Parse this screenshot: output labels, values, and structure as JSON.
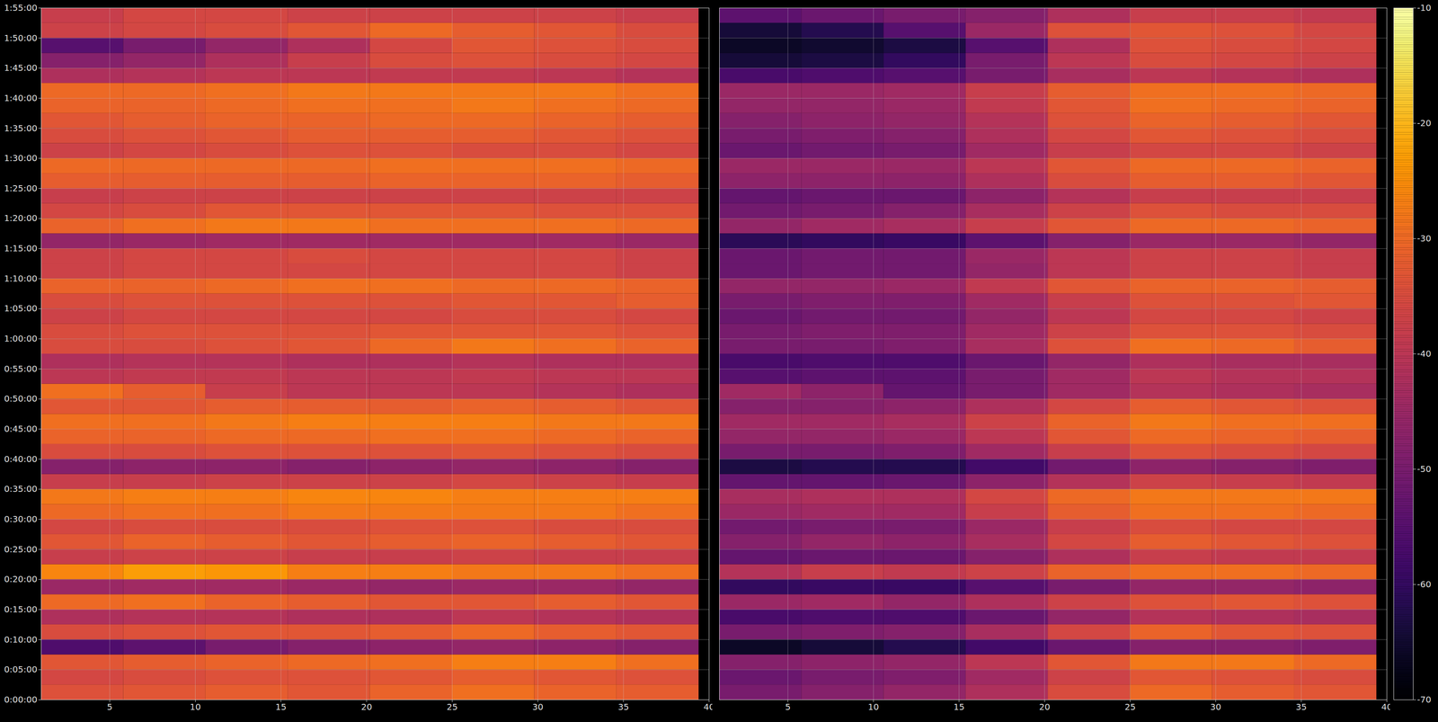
{
  "chart_data": [
    {
      "type": "heatmap",
      "grid": true,
      "xlim": [
        1,
        40
      ],
      "xticks": [
        5,
        10,
        15,
        20,
        25,
        30,
        35,
        40
      ],
      "ylim": [
        0,
        6900
      ],
      "yticks": [
        {
          "value": 0,
          "label": "0:00:00"
        },
        {
          "value": 300,
          "label": "0:05:00"
        },
        {
          "value": 600,
          "label": "0:10:00"
        },
        {
          "value": 900,
          "label": "0:15:00"
        },
        {
          "value": 1200,
          "label": "0:20:00"
        },
        {
          "value": 1500,
          "label": "0:25:00"
        },
        {
          "value": 1800,
          "label": "0:30:00"
        },
        {
          "value": 2100,
          "label": "0:35:00"
        },
        {
          "value": 2400,
          "label": "0:40:00"
        },
        {
          "value": 2700,
          "label": "0:45:00"
        },
        {
          "value": 3000,
          "label": "0:50:00"
        },
        {
          "value": 3300,
          "label": "0:55:00"
        },
        {
          "value": 3600,
          "label": "1:00:00"
        },
        {
          "value": 3900,
          "label": "1:05:00"
        },
        {
          "value": 4200,
          "label": "1:10:00"
        },
        {
          "value": 4500,
          "label": "1:15:00"
        },
        {
          "value": 4800,
          "label": "1:20:00"
        },
        {
          "value": 5100,
          "label": "1:25:00"
        },
        {
          "value": 5400,
          "label": "1:30:00"
        },
        {
          "value": 5700,
          "label": "1:35:00"
        },
        {
          "value": 6000,
          "label": "1:40:00"
        },
        {
          "value": 6300,
          "label": "1:45:00"
        },
        {
          "value": 6600,
          "label": "1:50:00"
        },
        {
          "value": 6900,
          "label": "1:55:00"
        }
      ],
      "x_edges": [
        1,
        5.8,
        10.6,
        15.4,
        20.2,
        25,
        29.8,
        34.6,
        39.4
      ],
      "y_edges": [
        0,
        150,
        300,
        450,
        600,
        750,
        900,
        1050,
        1200,
        1350,
        1500,
        1650,
        1800,
        1950,
        2100,
        2250,
        2400,
        2550,
        2700,
        2850,
        3000,
        3150,
        3300,
        3450,
        3600,
        3750,
        3900,
        4050,
        4200,
        4350,
        4500,
        4650,
        4800,
        4950,
        5100,
        5250,
        5400,
        5550,
        5700,
        5850,
        6000,
        6150,
        6300,
        6450,
        6600,
        6750,
        6900
      ],
      "values": [
        [
          -34,
          -33,
          -32,
          -33,
          -31,
          -29,
          -31,
          -32
        ],
        [
          -36,
          -35,
          -34,
          -34,
          -33,
          -32,
          -33,
          -34
        ],
        [
          -33,
          -32,
          -31,
          -30,
          -29,
          -27,
          -27,
          -29
        ],
        [
          -56,
          -54,
          -50,
          -48,
          -47,
          -46,
          -47,
          -48
        ],
        [
          -35,
          -34,
          -33,
          -33,
          -32,
          -30,
          -32,
          -33
        ],
        [
          -42,
          -41,
          -41,
          -42,
          -42,
          -40,
          -41,
          -42
        ],
        [
          -30,
          -29,
          -31,
          -32,
          -33,
          -33,
          -32,
          -33
        ],
        [
          -45,
          -44,
          -44,
          -45,
          -46,
          -45,
          -45,
          -46
        ],
        [
          -26,
          -23,
          -24,
          -27,
          -27,
          -28,
          -28,
          -29
        ],
        [
          -38,
          -37,
          -37,
          -38,
          -38,
          -37,
          -38,
          -38
        ],
        [
          -33,
          -31,
          -32,
          -33,
          -32,
          -31,
          -32,
          -33
        ],
        [
          -36,
          -35,
          -35,
          -35,
          -34,
          -34,
          -35,
          -35
        ],
        [
          -30,
          -29,
          -29,
          -28,
          -28,
          -28,
          -28,
          -29
        ],
        [
          -28,
          -27,
          -27,
          -26,
          -26,
          -27,
          -27,
          -27
        ],
        [
          -38,
          -38,
          -37,
          -37,
          -37,
          -36,
          -37,
          -38
        ],
        [
          -48,
          -47,
          -47,
          -48,
          -47,
          -46,
          -47,
          -48
        ],
        [
          -35,
          -35,
          -34,
          -34,
          -34,
          -33,
          -34,
          -35
        ],
        [
          -31,
          -31,
          -30,
          -30,
          -29,
          -29,
          -30,
          -31
        ],
        [
          -29,
          -29,
          -28,
          -27,
          -27,
          -27,
          -28,
          -28
        ],
        [
          -33,
          -33,
          -32,
          -32,
          -32,
          -31,
          -32,
          -33
        ],
        [
          -29,
          -32,
          -38,
          -40,
          -40,
          -40,
          -41,
          -42
        ],
        [
          -40,
          -39,
          -39,
          -40,
          -40,
          -39,
          -40,
          -40
        ],
        [
          -42,
          -41,
          -41,
          -42,
          -42,
          -41,
          -42,
          -42
        ],
        [
          -35,
          -35,
          -34,
          -33,
          -30,
          -28,
          -29,
          -31
        ],
        [
          -35,
          -34,
          -34,
          -34,
          -33,
          -33,
          -33,
          -34
        ],
        [
          -37,
          -36,
          -36,
          -36,
          -36,
          -35,
          -35,
          -36
        ],
        [
          -35,
          -34,
          -34,
          -34,
          -34,
          -33,
          -33,
          -32
        ],
        [
          -31,
          -31,
          -30,
          -29,
          -29,
          -30,
          -30,
          -31
        ],
        [
          -37,
          -36,
          -36,
          -36,
          -36,
          -36,
          -36,
          -37
        ],
        [
          -37,
          -36,
          -36,
          -35,
          -36,
          -36,
          -36,
          -37
        ],
        [
          -46,
          -45,
          -44,
          -44,
          -44,
          -44,
          -44,
          -45
        ],
        [
          -31,
          -29,
          -28,
          -28,
          -29,
          -29,
          -29,
          -30
        ],
        [
          -36,
          -35,
          -33,
          -33,
          -33,
          -33,
          -34,
          -34
        ],
        [
          -38,
          -37,
          -37,
          -37,
          -37,
          -37,
          -37,
          -37
        ],
        [
          -32,
          -32,
          -32,
          -32,
          -31,
          -31,
          -31,
          -32
        ],
        [
          -30,
          -30,
          -30,
          -30,
          -29,
          -29,
          -29,
          -30
        ],
        [
          -37,
          -36,
          -35,
          -34,
          -34,
          -35,
          -35,
          -36
        ],
        [
          -35,
          -34,
          -33,
          -32,
          -32,
          -32,
          -33,
          -34
        ],
        [
          -33,
          -32,
          -31,
          -31,
          -30,
          -30,
          -31,
          -32
        ],
        [
          -31,
          -31,
          -30,
          -29,
          -29,
          -28,
          -29,
          -30
        ],
        [
          -30,
          -30,
          -29,
          -28,
          -28,
          -28,
          -28,
          -29
        ],
        [
          -42,
          -41,
          -40,
          -40,
          -39,
          -39,
          -40,
          -41
        ],
        [
          -48,
          -46,
          -42,
          -38,
          -35,
          -34,
          -35,
          -36
        ],
        [
          -55,
          -50,
          -46,
          -42,
          -36,
          -33,
          -34,
          -35
        ],
        [
          -37,
          -36,
          -35,
          -33,
          -30,
          -32,
          -33,
          -35
        ],
        [
          -38,
          -36,
          -36,
          -37,
          -37,
          -37,
          -37,
          -38
        ]
      ]
    },
    {
      "type": "heatmap",
      "grid": true,
      "tick_labels": "x",
      "xlim": [
        1,
        40
      ],
      "xticks": [
        5,
        10,
        15,
        20,
        25,
        30,
        35,
        40
      ],
      "ylim": [
        0,
        6900
      ],
      "yticks": [
        0,
        300,
        600,
        900,
        1200,
        1500,
        1800,
        2100,
        2400,
        2700,
        3000,
        3300,
        3600,
        3900,
        4200,
        4500,
        4800,
        5100,
        5400,
        5700,
        6000,
        6300,
        6600,
        6900
      ],
      "x_edges": [
        1,
        5.8,
        10.6,
        15.4,
        20.2,
        25,
        29.8,
        34.6,
        39.4
      ],
      "y_edges": [
        0,
        150,
        300,
        450,
        600,
        750,
        900,
        1050,
        1200,
        1350,
        1500,
        1650,
        1800,
        1950,
        2100,
        2250,
        2400,
        2550,
        2700,
        2850,
        3000,
        3150,
        3300,
        3450,
        3600,
        3750,
        3900,
        4050,
        4200,
        4350,
        4500,
        4650,
        4800,
        4950,
        5100,
        5250,
        5400,
        5550,
        5700,
        5850,
        6000,
        6150,
        6300,
        6450,
        6600,
        6750,
        6900
      ],
      "values": [
        [
          -50,
          -48,
          -46,
          -42,
          -35,
          -30,
          -32,
          -33
        ],
        [
          -52,
          -50,
          -49,
          -44,
          -37,
          -33,
          -34,
          -35
        ],
        [
          -48,
          -47,
          -46,
          -40,
          -33,
          -28,
          -28,
          -30
        ],
        [
          -66,
          -64,
          -62,
          -58,
          -52,
          -48,
          -48,
          -49
        ],
        [
          -50,
          -49,
          -48,
          -43,
          -36,
          -31,
          -33,
          -34
        ],
        [
          -57,
          -56,
          -56,
          -52,
          -46,
          -41,
          -42,
          -43
        ],
        [
          -45,
          -44,
          -46,
          -42,
          -37,
          -34,
          -33,
          -34
        ],
        [
          -60,
          -59,
          -59,
          -55,
          -50,
          -46,
          -46,
          -47
        ],
        [
          -41,
          -38,
          -39,
          -37,
          -31,
          -29,
          -29,
          -30
        ],
        [
          -53,
          -52,
          -52,
          -48,
          -42,
          -38,
          -39,
          -39
        ],
        [
          -48,
          -46,
          -47,
          -43,
          -36,
          -32,
          -33,
          -34
        ],
        [
          -51,
          -50,
          -50,
          -45,
          -38,
          -35,
          -36,
          -36
        ],
        [
          -45,
          -44,
          -44,
          -38,
          -32,
          -29,
          -29,
          -30
        ],
        [
          -43,
          -42,
          -42,
          -36,
          -30,
          -28,
          -28,
          -28
        ],
        [
          -53,
          -53,
          -52,
          -47,
          -41,
          -37,
          -38,
          -39
        ],
        [
          -63,
          -62,
          -62,
          -58,
          -51,
          -47,
          -48,
          -49
        ],
        [
          -50,
          -50,
          -49,
          -44,
          -38,
          -34,
          -35,
          -36
        ],
        [
          -46,
          -46,
          -45,
          -40,
          -33,
          -30,
          -31,
          -32
        ],
        [
          -44,
          -44,
          -43,
          -37,
          -31,
          -28,
          -29,
          -29
        ],
        [
          -48,
          -48,
          -47,
          -42,
          -36,
          -32,
          -33,
          -34
        ],
        [
          -44,
          -47,
          -53,
          -50,
          -44,
          -41,
          -42,
          -43
        ],
        [
          -55,
          -54,
          -54,
          -50,
          -44,
          -40,
          -41,
          -41
        ],
        [
          -57,
          -56,
          -56,
          -52,
          -46,
          -42,
          -43,
          -43
        ],
        [
          -50,
          -50,
          -49,
          -43,
          -34,
          -29,
          -30,
          -32
        ],
        [
          -50,
          -49,
          -49,
          -44,
          -37,
          -34,
          -34,
          -35
        ],
        [
          -52,
          -51,
          -51,
          -46,
          -40,
          -36,
          -36,
          -37
        ],
        [
          -50,
          -49,
          -49,
          -44,
          -38,
          -34,
          -34,
          -33
        ],
        [
          -46,
          -46,
          -45,
          -39,
          -33,
          -31,
          -31,
          -32
        ],
        [
          -52,
          -51,
          -51,
          -46,
          -40,
          -37,
          -37,
          -38
        ],
        [
          -52,
          -51,
          -51,
          -45,
          -40,
          -37,
          -37,
          -38
        ],
        [
          -61,
          -60,
          -59,
          -54,
          -48,
          -45,
          -45,
          -46
        ],
        [
          -46,
          -44,
          -43,
          -38,
          -33,
          -30,
          -30,
          -31
        ],
        [
          -51,
          -50,
          -48,
          -43,
          -37,
          -34,
          -35,
          -35
        ],
        [
          -53,
          -52,
          -52,
          -47,
          -41,
          -38,
          -38,
          -38
        ],
        [
          -47,
          -47,
          -47,
          -42,
          -35,
          -32,
          -32,
          -33
        ],
        [
          -45,
          -45,
          -45,
          -40,
          -33,
          -30,
          -30,
          -31
        ],
        [
          -52,
          -51,
          -50,
          -44,
          -38,
          -36,
          -36,
          -37
        ],
        [
          -50,
          -49,
          -48,
          -42,
          -36,
          -33,
          -34,
          -35
        ],
        [
          -48,
          -47,
          -46,
          -41,
          -34,
          -31,
          -32,
          -33
        ],
        [
          -46,
          -46,
          -45,
          -39,
          -33,
          -29,
          -30,
          -31
        ],
        [
          -45,
          -45,
          -44,
          -38,
          -32,
          -29,
          -29,
          -30
        ],
        [
          -57,
          -56,
          -55,
          -50,
          -43,
          -40,
          -41,
          -42
        ],
        [
          -64,
          -63,
          -60,
          -50,
          -40,
          -35,
          -36,
          -37
        ],
        [
          -66,
          -65,
          -63,
          -55,
          -42,
          -34,
          -35,
          -36
        ],
        [
          -64,
          -62,
          -55,
          -45,
          -34,
          -33,
          -34,
          -36
        ],
        [
          -54,
          -52,
          -50,
          -48,
          -42,
          -38,
          -38,
          -39
        ]
      ],
      "colorbar": {
        "range": [
          -70,
          -10
        ],
        "ticks": [
          -70,
          -60,
          -50,
          -40,
          -30,
          -20,
          -10
        ]
      }
    }
  ]
}
